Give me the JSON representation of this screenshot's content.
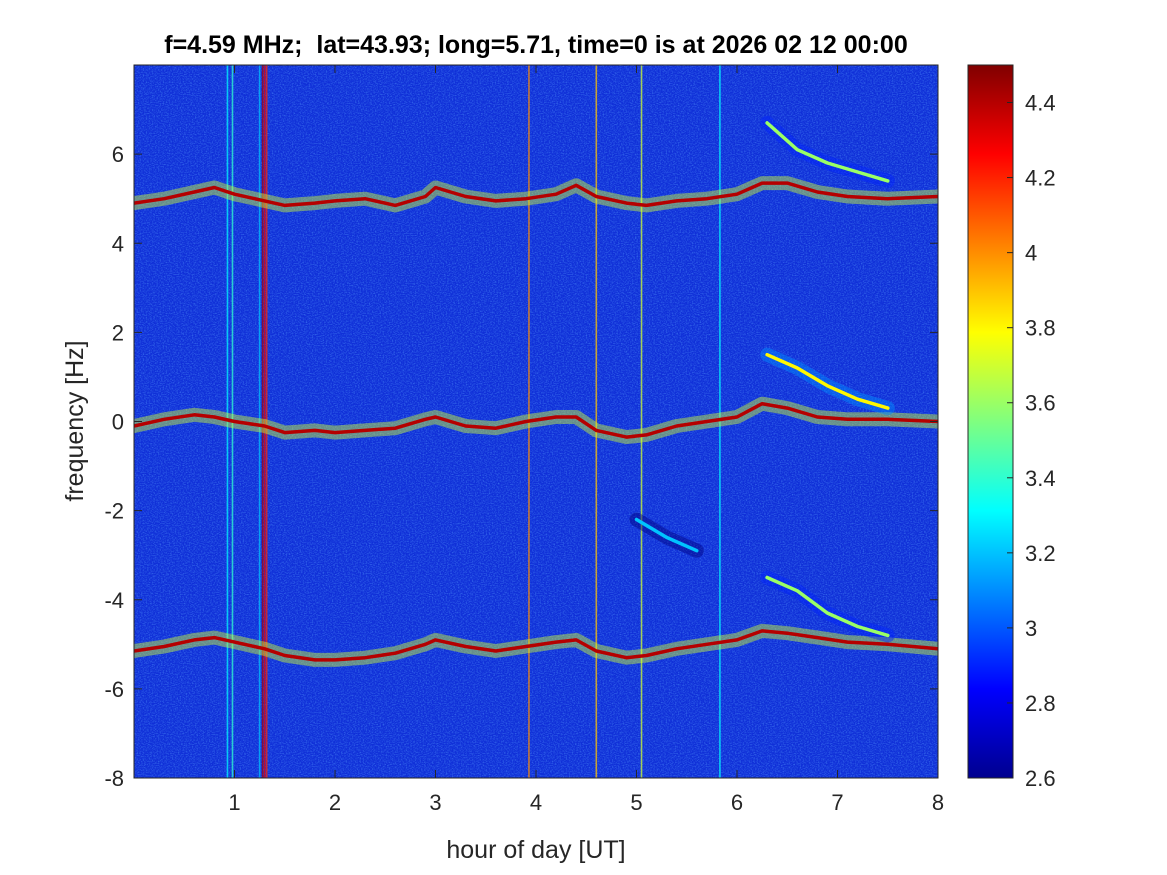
{
  "chart_data": {
    "type": "heatmap",
    "title": "f=4.59 MHz;  lat=43.93; long=5.71, time=0 is at 2026 02 12 00:00",
    "xlabel": "hour of day [UT]",
    "ylabel": "frequency [Hz]",
    "xlim": [
      0,
      8
    ],
    "ylim": [
      -8,
      8
    ],
    "xticks": [
      1,
      2,
      3,
      4,
      5,
      6,
      7,
      8
    ],
    "xtick_labels": [
      "1",
      "2",
      "3",
      "4",
      "5",
      "6",
      "7",
      "8"
    ],
    "yticks": [
      -8,
      -6,
      -4,
      -2,
      0,
      2,
      4,
      6
    ],
    "ytick_labels": [
      "-8",
      "-6",
      "-4",
      "-2",
      "0",
      "2",
      "4",
      "6"
    ],
    "colorbar": {
      "colormap": "jet",
      "clim": [
        2.6,
        4.5
      ],
      "ticks": [
        2.6,
        2.8,
        3.0,
        3.2,
        3.4,
        3.6,
        3.8,
        4.0,
        4.2,
        4.4
      ],
      "tick_labels": [
        "2.6",
        "2.8",
        "3",
        "3.2",
        "3.4",
        "3.6",
        "3.8",
        "4",
        "4.2",
        "4.4"
      ]
    },
    "background_level": 2.7,
    "traces": [
      {
        "x": [
          0,
          0.3,
          0.6,
          0.8,
          1.0,
          1.3,
          1.5,
          1.8,
          2.0,
          2.3,
          2.6,
          2.9,
          3.0,
          3.3,
          3.6,
          3.9,
          4.2,
          4.4,
          4.6,
          4.9,
          5.1,
          5.4,
          5.7,
          6.0,
          6.25,
          6.5,
          6.8,
          7.1,
          7.5,
          8.0
        ],
        "y": [
          4.9,
          5.0,
          5.15,
          5.25,
          5.1,
          4.95,
          4.85,
          4.9,
          4.95,
          5.0,
          4.85,
          5.05,
          5.25,
          5.05,
          4.95,
          5.0,
          5.1,
          5.3,
          5.05,
          4.9,
          4.85,
          4.95,
          5.0,
          5.1,
          5.35,
          5.35,
          5.15,
          5.05,
          5.0,
          5.05
        ],
        "level": 4.4
      },
      {
        "x": [
          0,
          0.3,
          0.6,
          0.8,
          1.0,
          1.3,
          1.5,
          1.8,
          2.0,
          2.3,
          2.6,
          2.9,
          3.0,
          3.3,
          3.6,
          3.9,
          4.2,
          4.4,
          4.6,
          4.9,
          5.1,
          5.4,
          5.7,
          6.0,
          6.25,
          6.5,
          6.8,
          7.1,
          7.5,
          8.0
        ],
        "y": [
          -0.1,
          0.05,
          0.15,
          0.1,
          0.0,
          -0.1,
          -0.25,
          -0.2,
          -0.25,
          -0.2,
          -0.15,
          0.05,
          0.1,
          -0.1,
          -0.15,
          0.0,
          0.1,
          0.1,
          -0.2,
          -0.35,
          -0.3,
          -0.1,
          0.0,
          0.1,
          0.4,
          0.3,
          0.1,
          0.05,
          0.05,
          0.0
        ],
        "level": 4.4
      },
      {
        "x": [
          0,
          0.3,
          0.6,
          0.8,
          1.0,
          1.3,
          1.5,
          1.8,
          2.0,
          2.3,
          2.6,
          2.9,
          3.0,
          3.3,
          3.6,
          3.9,
          4.2,
          4.4,
          4.6,
          4.9,
          5.1,
          5.4,
          5.7,
          6.0,
          6.25,
          6.5,
          6.8,
          7.1,
          7.5,
          8.0
        ],
        "y": [
          -5.15,
          -5.05,
          -4.9,
          -4.85,
          -4.95,
          -5.1,
          -5.25,
          -5.35,
          -5.35,
          -5.3,
          -5.2,
          -5.0,
          -4.9,
          -5.05,
          -5.15,
          -5.05,
          -4.95,
          -4.9,
          -5.15,
          -5.3,
          -5.25,
          -5.1,
          -5.0,
          -4.9,
          -4.7,
          -4.75,
          -4.85,
          -4.95,
          -5.0,
          -5.1
        ],
        "level": 4.4
      },
      {
        "x": [
          6.3,
          6.6,
          6.9,
          7.2,
          7.5
        ],
        "y": [
          6.7,
          6.1,
          5.8,
          5.6,
          5.4
        ],
        "level": 3.6
      },
      {
        "x": [
          6.3,
          6.6,
          6.9,
          7.2,
          7.5
        ],
        "y": [
          1.5,
          1.2,
          0.8,
          0.5,
          0.3
        ],
        "level": 3.8
      },
      {
        "x": [
          6.3,
          6.6,
          6.9,
          7.2,
          7.5
        ],
        "y": [
          -3.5,
          -3.8,
          -4.3,
          -4.6,
          -4.8
        ],
        "level": 3.6
      },
      {
        "x": [
          5.0,
          5.3,
          5.6
        ],
        "y": [
          -2.2,
          -2.6,
          -2.9
        ],
        "level": 3.2
      }
    ],
    "streaks": [
      {
        "x": 0.93,
        "level": 3.3
      },
      {
        "x": 0.98,
        "level": 3.4
      },
      {
        "x": 1.25,
        "level": 3.2
      },
      {
        "x": 1.28,
        "level": 4.4
      },
      {
        "x": 1.3,
        "level": 4.3
      },
      {
        "x": 1.32,
        "level": 4.2
      },
      {
        "x": 3.93,
        "level": 4.0
      },
      {
        "x": 4.6,
        "level": 3.9
      },
      {
        "x": 5.05,
        "level": 3.7
      },
      {
        "x": 5.83,
        "level": 3.3
      }
    ]
  }
}
